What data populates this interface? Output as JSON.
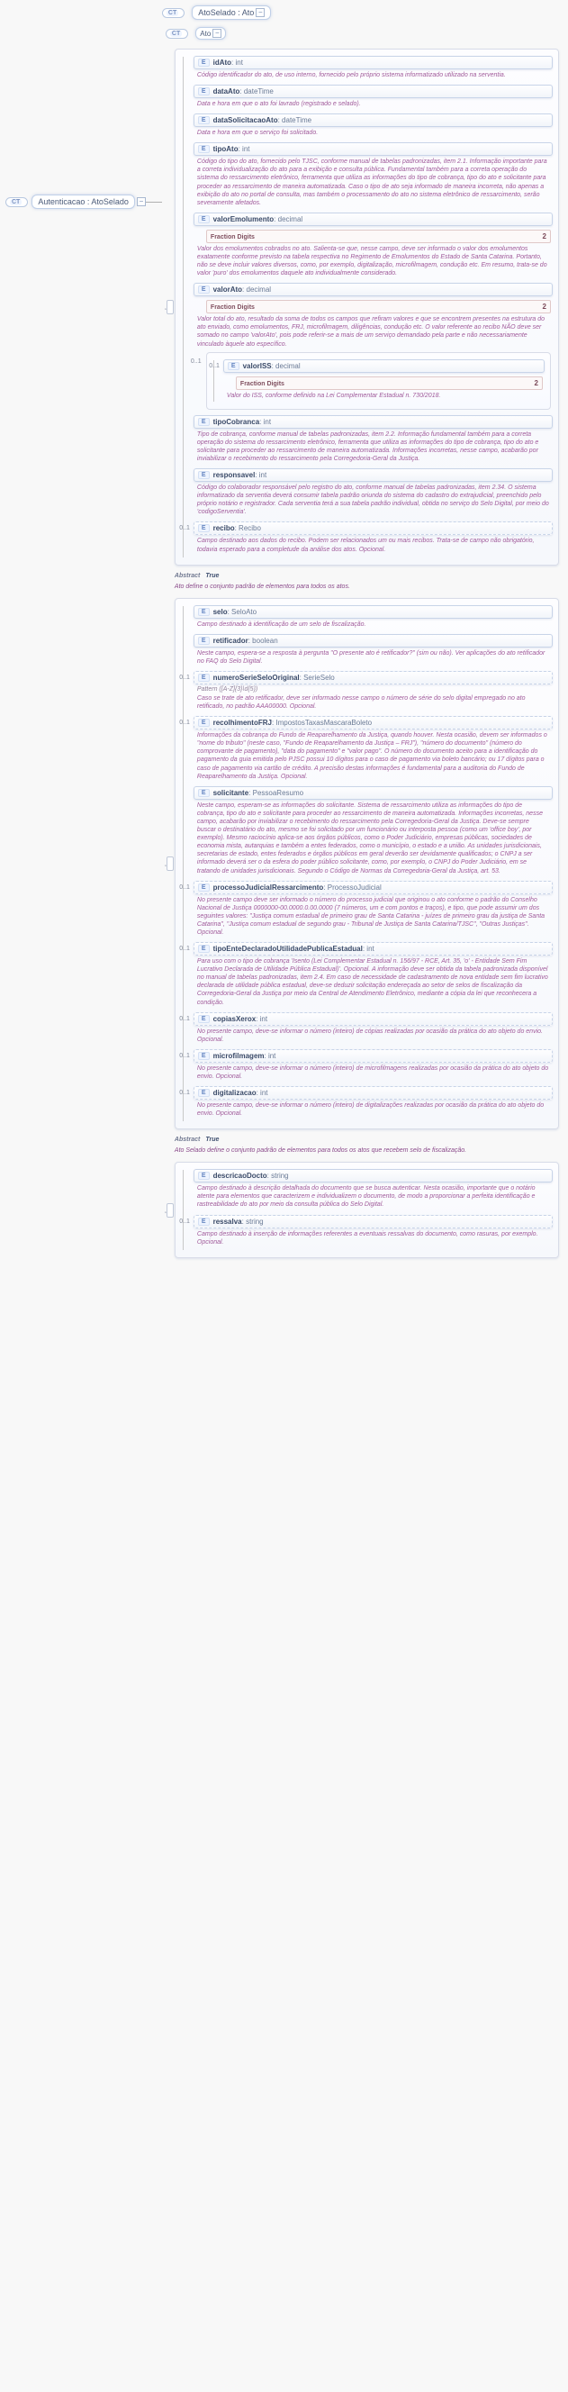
{
  "root": {
    "label": "Autenticacao : AtoSelado"
  },
  "main": {
    "label": "AtoSelado : Ato",
    "inner": "Ato",
    "abstract1_label": "Abstract",
    "abstract1_val": "True",
    "abstract2_label": "Abstract",
    "abstract2_val": "True",
    "note1": "Ato define o conjunto padrão de elementos para todos os atos.",
    "note2": "Ato Selado define o conjunto padrão de elementos para todos os atos que recebem selo de fiscalização."
  },
  "section1": [
    {
      "name": "idAto",
      "type": ":  int",
      "card": "",
      "desc": "Código identificador do ato, de uso interno, fornecido pelo próprio sistema informatizado utilizado na serventia."
    },
    {
      "name": "dataAto",
      "type": ": dateTime",
      "card": "",
      "desc": "Data e hora em que o ato foi lavrado (registrado e selado)."
    },
    {
      "name": "dataSolicitacaoAto",
      "type": ": dateTime",
      "card": "",
      "desc": "Data e hora em que o serviço foi solicitado."
    },
    {
      "name": "tipoAto",
      "type": ":  int",
      "card": "",
      "desc": "Código do tipo do ato, fornecido pelo TJSC, conforme manual de tabelas padronizadas, item 2.1. Informação importante para a correta individualização\ndo ato para a exibição e consulta pública. Fundamental também para a correta operação\ndo sistema do ressarcimento eletrônico, ferramenta que utiliza as informações do tipo\nde cobrança, tipo do ato e solicitante para proceder ao ressarcimento de maneira\nautomatizada. Caso o tipo de ato seja informado de maneira incorreta, não apenas a\nexibição do ato no portal de consulta, mas também o processamento do ato no sistema\neletrônico de ressarcimento, serão severamente afetados."
    },
    {
      "name": "valorEmolumento",
      "type": ": decimal",
      "card": "",
      "desc": "Valor dos emolumentos cobrados no ato. Salienta-se que, nesse campo, deve ser informado o valor dos emolumentos exatamente conforme previsto na tabela\nrespectiva no Regimento de Emolumentos do Estado de Santa Catarina. Portanto, não se\ndeve incluir valores diversos, como, por exemplo, digitalização, microfilmagem,\ncondução etc. Em resumo, trata-se do valor 'puro' dos emolumentos daquele ato\nindividualmente considerado.",
      "frac": "Fraction Digits",
      "fracVal": "2"
    },
    {
      "name": "valorAto",
      "type": ": decimal",
      "card": "",
      "desc": "Valor total do ato, resultado da soma de todos os campos que refiram valores e que se encontrem presentes na estrutura do ato enviado, como emolumentos,\nFRJ, microfilmagem, diligências, condução etc. O valor referente ao recibo NÃO deve\nser somado no campo 'valorAto', pois pode referir-se a mais de um serviço demandado\npela parte e não necessariamente vinculado àquele ato específico.",
      "frac": "Fraction Digits",
      "fracVal": "2",
      "nested": [
        {
          "name": "valorISS",
          "type": ": decimal",
          "card": "0..1",
          "desc": "Valor do ISS, conforme definido na Lei Complementar Estadual n. 730/2018.",
          "frac": "Fraction Digits",
          "fracVal": "2"
        }
      ]
    },
    {
      "name": "tipoCobranca",
      "type": ":  int",
      "card": "",
      "desc": "Tipo de cobrança, conforme manual de tabelas padronizadas, item 2.2. Informação fundamental também para a correta operação do sistema do ressarcimento\neletrônico, ferramenta que utiliza as informações do tipo de cobrança, tipo do ato\ne solicitante para proceder ao ressarcimento de maneira automatizada. Informações\nincorretas, nesse campo, acabarão por inviabilizar o recebimento do ressarcimento\npela Corregedoria-Geral da Justiça."
    },
    {
      "name": "responsavel",
      "type": ":  int",
      "card": "",
      "desc": "Código do colaborador responsável pelo registro do ato, conforme manual de tabelas padronizadas, item 2.34. O sistema informatizado da serventia\ndeverá consumir tabela padrão oriunda do sistema do cadastro do extrajudicial,\npreenchido pelo próprio notário e registrador. Cada serventia terá a sua tabela\npadrão individual, obtida no serviço do Selo Digital, por meio do 'codigoServentia'."
    },
    {
      "name": "recibo",
      "type": ":  Recibo",
      "card": "0..1",
      "dashed": true,
      "desc": "Campo destinado aos dados do recibo. Podem ser relacionados um ou mais recibos. Trata-se de campo não obrigatório, todavia esperado para a\ncompletude da análise dos atos. Opcional."
    }
  ],
  "section2": [
    {
      "name": "selo",
      "type": ":  SeloAto",
      "card": "",
      "desc": "Campo destinado à identificação de um selo de fiscalização."
    },
    {
      "name": "retificador",
      "type": ": boolean",
      "card": "",
      "desc": "Neste campo, espera-se a resposta à pergunta \"O presente ato é retificador?\" (sim ou não). Ver aplicações do ato retificador no FAQ do Selo Digital."
    },
    {
      "name": "numeroSerieSeloOriginal",
      "type": ": SerieSelo",
      "card": "0..1",
      "dashed": true,
      "desc": "Caso se trate de ato retificador, deve ser informado nesse campo o número de série do selo digital empregado no ato retificado, no padrão AAA00000. Opcional.",
      "pattern": "Pattern  ([A-Z]{3}\\d{5})"
    },
    {
      "name": "recolhimentoFRJ",
      "type": ": ImpostosTaxasMascaraBoleto",
      "card": "0..1",
      "dashed": true,
      "desc": "Informações da cobrança do Fundo de Reaparelhamento da Justiça, quando houver. Nesta ocasião, devem ser informados o \"nome do tributo\" (neste caso,\n\"Fundo de Reaparelhamento da Justiça – FRJ\"), \"número do documento\" (número do\ncomprovante de pagamento), \"data do pagamento\" e \"valor pago\". O número do\ndocumento aceito para a identificação do pagamento da guia emitida pelo PJSC\npossui 10 dígitos para o caso de pagamento via boleto bancário; ou 17 dígitos\npara o caso de pagamento via cartão de crédito.\nA precisão destas informações é fundamental para a auditoria do Fundo de\nReaparelhamento da Justiça. Opcional."
    },
    {
      "name": "solicitante",
      "type": ": PessoaResumo",
      "card": "",
      "desc": "Neste campo, esperam-se as informações do solicitante. Sistema de ressarcimento utiliza as informações do tipo\nde cobrança, tipo do ato e solicitante para proceder ao ressarcimento de maneira automatizada. Informações incorretas, nesse campo, acabarão por\ninviabilizar o recebimento do ressarcimento pela Corregedoria-Geral da Justiça. Deve-se sempre buscar o destinatário do ato, mesmo se foi\nsolicitado por um funcionário ou interposta pessoa (como um 'office boy', por exemplo). Mesmo raciocínio aplica-se aos órgãos públicos, como o\nPoder\nJudiciário, empresas públicas, sociedades de economia mista, autarquias\ne também a entes federados, como o município, o estado e a união. As unidades jurisdicionais, secretarias de estado, entes federados e órgãos\npúblicos em geral deverão ser devidamente qualificados; o CNPJ a ser informado deverá ser o da esfera do poder público solicitante, como, por\nexemplo, o CNPJ do Poder Judiciário, em se tratando de unidades jurisdicionais.\nSegundo o Código de Normas da Corregedoria-Geral da Justiça, art. 53."
    },
    {
      "name": "processoJudicialRessarcimento",
      "type": ": ProcessoJudicial",
      "card": "0..1",
      "dashed": true,
      "desc": "No presente campo deve ser informado o número do processo judicial que originou o ato conforme o padrão do Conselho Nacional de Justiça\n0000000-00.0000.0.00.0000 (7 números, um e com pontos e traços), e tipo, que pode assumir um dos seguintes valores: \"Justiça comum\nestadual de\nprimeiro grau de Santa Catarina - juízes de primeiro grau da justiça de Santa Catarina\", \"Justiça comum estadual de segundo grau - Tribunal\nde\nJustiça de Santa Catarina/TJSC\", \"Outras Justiças\". Opcional."
    },
    {
      "name": "tipoEnteDeclaradoUtilidadePublicaEstadual",
      "type": ":  int",
      "card": "0..1",
      "dashed": true,
      "desc": "Para uso com o tipo de cobrança 'Isento (Lei Complementar Estadual n. 156/97 - RCE, Art. 35, 'o' - Entidade Sem Fim Lucrativo Declarada\nde Utilidade Pública Estadual)'. Opcional. A informação deve ser obtida da\ntabela padronizada disponível no manual de tabelas padronizadas, item 2.4.\nEm caso de necessidade de cadastramento de nova entidade sem fim lucrativo\ndeclarada de utilidade pública estadual, deve-se deduzir solicitação endereçada\nao setor de selos de fiscalização da Corregedoria-Geral da Justiça por meio da\nCentral de Atendimento Eletrônico, mediante a cópia da lei que reconhecera a condição."
    },
    {
      "name": "copiasXerox",
      "type": ":  int",
      "card": "0..1",
      "dashed": true,
      "desc": "No presente campo, deve-se informar o número (inteiro) de cópias realizadas por ocasião da prática do ato objeto do envio. Opcional."
    },
    {
      "name": "microfilmagem",
      "type": ":  int",
      "card": "0..1",
      "dashed": true,
      "desc": "No presente campo, deve-se informar o número (inteiro) de microfilmagens realizadas por ocasião da prática do ato objeto do envio. Opcional."
    },
    {
      "name": "digitalizacao",
      "type": ":  int",
      "card": "0..1",
      "dashed": true,
      "desc": "No presente campo, deve-se informar o número (inteiro) de digitalizações realizadas por ocasião da prática do ato objeto do envio. Opcional."
    }
  ],
  "section3": [
    {
      "name": "descricaoDocto",
      "type": ": string",
      "card": "",
      "desc": "Campo destinado à descrição detalhada do documento que se busca autenticar. Nesta ocasião, importante que o notário atente para elementos que\ncaracterizem e individualizem o documento, de modo a proporcionar a perfeita\nidentificação e rastreabilidade do ato por meio da consulta pública do Selo Digital."
    },
    {
      "name": "ressalva",
      "type": ": string",
      "card": "0..1",
      "dashed": true,
      "desc": "Campo destinado à inserção de informações referentes a eventuais ressalvas do documento, como rasuras, por exemplo. Opcional."
    }
  ]
}
